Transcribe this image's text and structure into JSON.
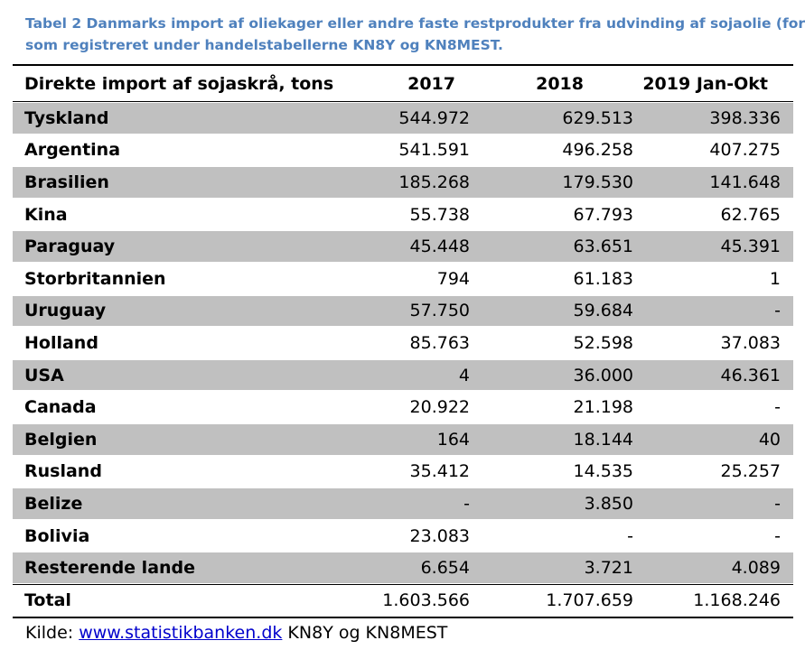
{
  "caption": {
    "line1": "Tabel 2 Danmarks import af oliekager eller andre faste restprodukter fra udvinding af sojaolie (for",
    "line2": "som registreret under handelstabellerne KN8Y og KN8MEST."
  },
  "table": {
    "headers": [
      "Direkte import af sojaskrå, tons",
      "2017",
      "2018",
      "2019 Jan-Okt"
    ],
    "rows": [
      [
        "Tyskland",
        "544.972",
        "629.513",
        "398.336"
      ],
      [
        "Argentina",
        "541.591",
        "496.258",
        "407.275"
      ],
      [
        "Brasilien",
        "185.268",
        "179.530",
        "141.648"
      ],
      [
        "Kina",
        "55.738",
        "67.793",
        "62.765"
      ],
      [
        "Paraguay",
        "45.448",
        "63.651",
        "45.391"
      ],
      [
        "Storbritannien",
        "794",
        "61.183",
        "1"
      ],
      [
        "Uruguay",
        "57.750",
        "59.684",
        "-"
      ],
      [
        "Holland",
        "85.763",
        "52.598",
        "37.083"
      ],
      [
        "USA",
        "4",
        "36.000",
        "46.361"
      ],
      [
        "Canada",
        "20.922",
        "21.198",
        "-"
      ],
      [
        "Belgien",
        "164",
        "18.144",
        "40"
      ],
      [
        "Rusland",
        "35.412",
        "14.535",
        "25.257"
      ],
      [
        "Belize",
        "-",
        "3.850",
        "-"
      ],
      [
        "Bolivia",
        "23.083",
        "-",
        "-"
      ],
      [
        "Resterende lande",
        "6.654",
        "3.721",
        "4.089"
      ]
    ],
    "total": [
      "Total",
      "1.603.566",
      "1.707.659",
      "1.168.246"
    ]
  },
  "source": {
    "prefix": "Kilde: ",
    "link_text": "www.statistikbanken.dk",
    "suffix": " KN8Y og KN8MEST"
  },
  "colors": {
    "caption": "#4f81bd",
    "shade": "#c0c0c0",
    "link": "#0000cc"
  }
}
